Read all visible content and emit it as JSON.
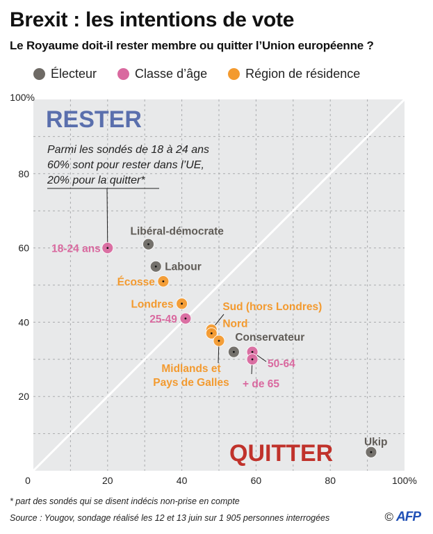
{
  "header": {
    "title": "Brexit : les intentions de vote",
    "subtitle": "Le Royaume doit-il rester membre ou quitter l’Union européenne ?"
  },
  "legend": [
    {
      "label": "Électeur",
      "color": "#6e6a65"
    },
    {
      "label": "Classe d’âge",
      "color": "#d9699f"
    },
    {
      "label": "Région de résidence",
      "color": "#f39a2f"
    }
  ],
  "chart_data": {
    "type": "scatter",
    "title": "Brexit : les intentions de vote",
    "xlabel": "Quitter (%)",
    "ylabel": "Rester (%)",
    "xlim": [
      0,
      100
    ],
    "ylim": [
      0,
      100
    ],
    "x_ticks": [
      "0",
      "20",
      "40",
      "60",
      "80",
      "100%"
    ],
    "y_ticks": [
      "20",
      "40",
      "60",
      "80",
      "100%"
    ],
    "grid": true,
    "diagonal": true,
    "zone_labels": {
      "top_left": "RESTER",
      "bottom_right": "QUITTER"
    },
    "zone_colors": {
      "rester": "#5a6fad",
      "quitter": "#c0322b"
    },
    "annotation": {
      "lines": [
        "Parmi les sondés de 18 à 24 ans",
        "60% sont pour rester dans l’UE,",
        "20% pour la quitter*"
      ]
    },
    "series": [
      {
        "name": "Électeur",
        "color": "#6e6a65",
        "points": [
          {
            "label": "Libéral-démocrate",
            "x": 31,
            "y": 61
          },
          {
            "label": "Labour",
            "x": 33,
            "y": 55
          },
          {
            "label": "Conservateur",
            "x": 54,
            "y": 32
          },
          {
            "label": "Ukip",
            "x": 91,
            "y": 5
          }
        ]
      },
      {
        "name": "Classe d’âge",
        "color": "#d9699f",
        "points": [
          {
            "label": "18-24 ans",
            "x": 20,
            "y": 60
          },
          {
            "label": "25-49",
            "x": 41,
            "y": 41
          },
          {
            "label": "50-64",
            "x": 59,
            "y": 32
          },
          {
            "label": "+ de 65",
            "x": 59,
            "y": 30
          }
        ]
      },
      {
        "name": "Région de résidence",
        "color": "#f39a2f",
        "points": [
          {
            "label": "Écosse",
            "x": 35,
            "y": 51
          },
          {
            "label": "Londres",
            "x": 40,
            "y": 45
          },
          {
            "label": "Sud (hors Londres)",
            "x": 48,
            "y": 38
          },
          {
            "label": "Nord",
            "x": 48,
            "y": 37
          },
          {
            "label": "Midlands et Pays de Galles",
            "x": 50,
            "y": 35
          }
        ]
      }
    ]
  },
  "footer": {
    "note": "* part des sondés qui se disent indécis non-prise en compte",
    "source": "Source : Yougov, sondage réalisé les 12 et 13 juin sur 1 905 personnes interrogées",
    "copyright": "©",
    "brand": "AFP"
  }
}
